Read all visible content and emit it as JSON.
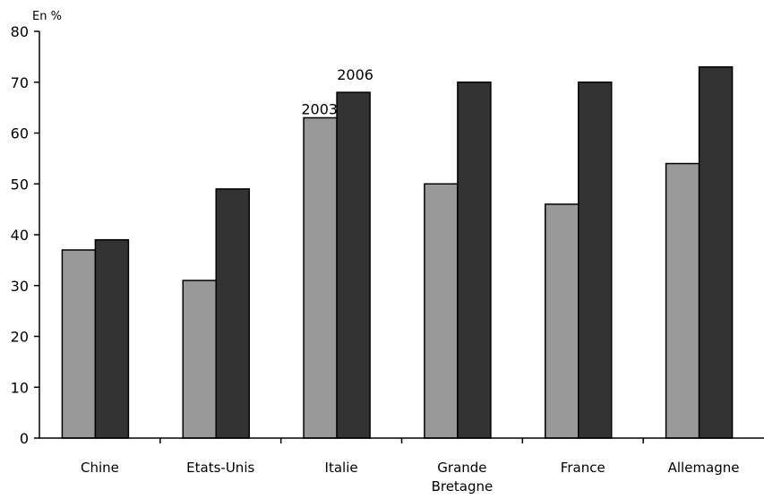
{
  "chart_data": {
    "type": "bar",
    "unit_label": "En %",
    "categories": [
      [
        "Chine"
      ],
      [
        "Etats-Unis"
      ],
      [
        "Italie"
      ],
      [
        "Grande",
        "Bretagne"
      ],
      [
        "France"
      ],
      [
        "Allemagne"
      ]
    ],
    "series": [
      {
        "name": "2003",
        "color": "#999999",
        "values": [
          37,
          31,
          63,
          50,
          46,
          54
        ]
      },
      {
        "name": "2006",
        "color": "#333333",
        "values": [
          39,
          49,
          68,
          70,
          70,
          73
        ]
      }
    ],
    "ylim": [
      0,
      80
    ],
    "yticks": [
      0,
      10,
      20,
      30,
      40,
      50,
      60,
      70,
      80
    ],
    "grid": false,
    "legend": "inline labels above Italie bars"
  }
}
